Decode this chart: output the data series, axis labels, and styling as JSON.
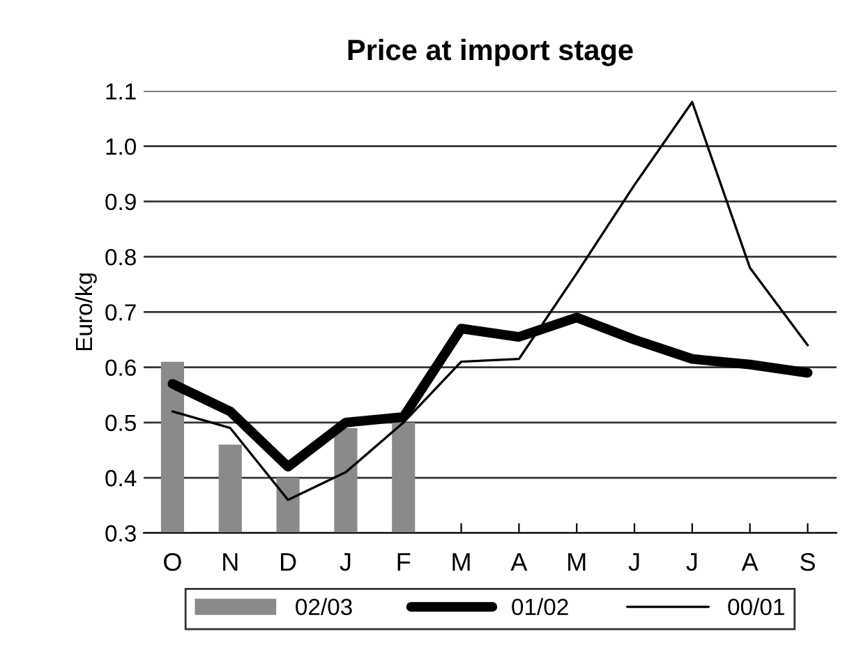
{
  "chart_data": {
    "type": "line",
    "title": "Price at import stage",
    "ylabel": "Euro/kg",
    "categories": [
      "O",
      "N",
      "D",
      "J",
      "F",
      "M",
      "A",
      "M",
      "J",
      "J",
      "A",
      "S"
    ],
    "series": [
      {
        "name": "02/03",
        "type": "bar",
        "color": "#8a8a8a",
        "values": [
          0.61,
          0.46,
          0.4,
          0.49,
          0.5,
          null,
          null,
          null,
          null,
          null,
          null,
          null
        ]
      },
      {
        "name": "01/02",
        "color": "#000000",
        "values": [
          0.57,
          0.52,
          0.42,
          0.5,
          0.51,
          0.67,
          0.655,
          0.69,
          0.65,
          0.615,
          0.605,
          0.59
        ]
      },
      {
        "name": "00/01",
        "color": "#000000",
        "values": [
          0.52,
          0.49,
          0.36,
          0.41,
          0.5,
          0.61,
          0.615,
          0.77,
          0.93,
          1.08,
          0.78,
          0.64
        ]
      }
    ],
    "ylim": [
      0.3,
      1.1
    ],
    "yticks": [
      0.3,
      0.4,
      0.5,
      0.6,
      0.7,
      0.8,
      0.9,
      {
        "value": 1,
        "label": "1.0"
      },
      1.1
    ],
    "grid": "y",
    "legend": "bottom",
    "line_style": "solid",
    "marker": "none"
  }
}
